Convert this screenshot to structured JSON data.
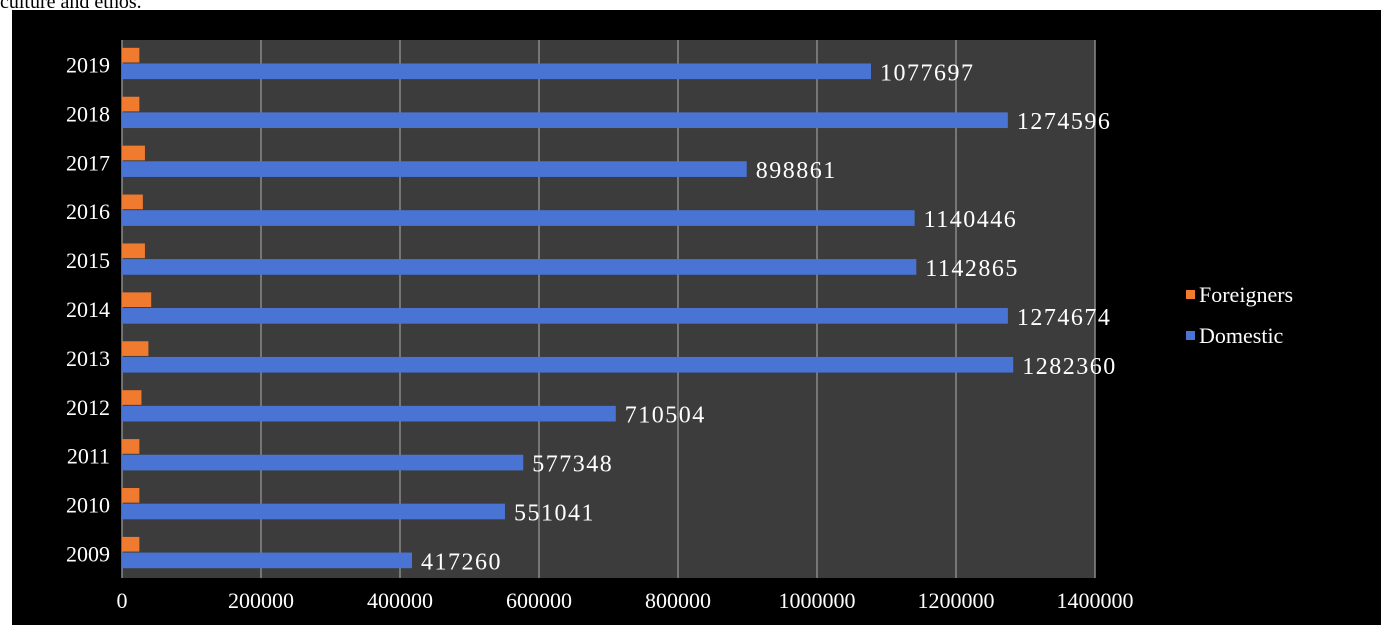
{
  "caption_fragment": "culture and ethos.",
  "colors": {
    "background": "#000000",
    "plot_area": "#3c3c3c",
    "gridline": "#8a8a8a",
    "domestic": "#4a74d4",
    "foreigners": "#f07a2e",
    "text": "#ffffff"
  },
  "chart_data": {
    "type": "bar",
    "orientation": "horizontal",
    "categories": [
      "2009",
      "2010",
      "2011",
      "2012",
      "2013",
      "2014",
      "2015",
      "2016",
      "2017",
      "2018",
      "2019"
    ],
    "series": [
      {
        "name": "Domestic",
        "color": "#4a74d4",
        "values": [
          417260,
          551041,
          577348,
          710504,
          1282360,
          1274674,
          1142865,
          1140446,
          898861,
          1274596,
          1077697
        ]
      },
      {
        "name": "Foreigners",
        "color": "#f07a2e",
        "values": [
          25000,
          25000,
          25000,
          28000,
          38000,
          42000,
          33000,
          30000,
          33000,
          25000,
          25000
        ]
      }
    ],
    "data_labels": [
      "417260",
      "551041",
      "577348",
      "710504",
      "1282360",
      "1274674",
      "1142865",
      "1140446",
      "898861",
      "1274596",
      "1077697"
    ],
    "xlim": [
      0,
      1400000
    ],
    "xticks": [
      0,
      200000,
      400000,
      600000,
      800000,
      1000000,
      1200000,
      1400000
    ],
    "xtick_labels": [
      "0",
      "200000",
      "400000",
      "600000",
      "800000",
      "1000000",
      "1200000",
      "1400000"
    ],
    "grid": "vertical",
    "legend": {
      "position": "right",
      "entries": [
        "Foreigners",
        "Domestic"
      ]
    },
    "title": "",
    "xlabel": "",
    "ylabel": ""
  }
}
